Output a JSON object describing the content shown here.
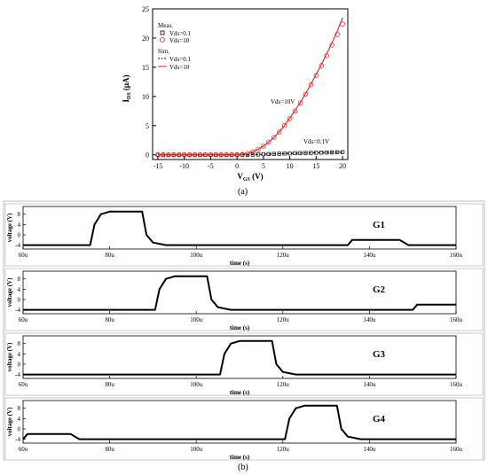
{
  "chart_data": [
    {
      "type": "scatter",
      "panel_label": "(a)",
      "xlabel": "V",
      "xlabel_sub": "GS",
      "xlabel_unit": " (V)",
      "ylabel": "I",
      "ylabel_sub": "DS",
      "ylabel_unit": " (μA)",
      "xlim": [
        -16,
        21
      ],
      "ylim": [
        -0.8,
        25
      ],
      "xticks": [
        -15,
        -10,
        -5,
        0,
        5,
        10,
        15,
        20
      ],
      "yticks": [
        0,
        5,
        10,
        15,
        20,
        25
      ],
      "legend": {
        "placement": "top-left",
        "group1": "Meas.",
        "group2": "Sim.",
        "items": [
          "Vds=0.1",
          "Vds=10",
          "Vds=0.1",
          "Vds=10"
        ]
      },
      "annotations": [
        "Vds=10V",
        "Vds=0.1V"
      ],
      "series": [
        {
          "name": "Vds=0.1",
          "group": "Meas.",
          "style": "square-marker",
          "color": "#000000",
          "x": [
            -15,
            -14,
            -13,
            -12,
            -11,
            -10,
            -9,
            -8,
            -7,
            -6,
            -5,
            -4,
            -3,
            -2,
            -1,
            0,
            1,
            2,
            3,
            4,
            5,
            6,
            7,
            8,
            9,
            10,
            11,
            12,
            13,
            14,
            15,
            16,
            17,
            18,
            19,
            20
          ],
          "y": [
            0,
            0,
            0,
            0,
            0,
            0,
            0,
            0,
            0,
            0,
            0,
            0,
            0,
            0,
            0,
            0,
            0.01,
            0.02,
            0.04,
            0.07,
            0.1,
            0.13,
            0.16,
            0.19,
            0.22,
            0.25,
            0.28,
            0.3,
            0.32,
            0.34,
            0.36,
            0.38,
            0.4,
            0.42,
            0.44,
            0.46
          ]
        },
        {
          "name": "Vds=10",
          "group": "Meas.",
          "style": "circle-marker",
          "color": "#e8231f",
          "x": [
            -15,
            -14,
            -13,
            -12,
            -11,
            -10,
            -9,
            -8,
            -7,
            -6,
            -5,
            -4,
            -3,
            -2,
            -1,
            0,
            1,
            2,
            3,
            4,
            5,
            6,
            7,
            8,
            9,
            10,
            11,
            12,
            13,
            14,
            15,
            16,
            17,
            18,
            19,
            20
          ],
          "y": [
            0,
            0,
            0,
            0,
            0,
            0,
            0,
            0,
            0,
            0,
            0,
            0,
            0,
            0,
            0,
            0.02,
            0.08,
            0.25,
            0.55,
            0.95,
            1.5,
            2.2,
            3.0,
            3.9,
            5.0,
            6.2,
            7.5,
            8.9,
            10.4,
            12.0,
            13.6,
            15.3,
            17.0,
            18.8,
            20.6,
            22.4
          ]
        },
        {
          "name": "Vds=0.1",
          "group": "Sim.",
          "style": "dashed-line",
          "color": "#000000",
          "x": [
            -15,
            -10,
            -5,
            0,
            2,
            4,
            6,
            8,
            10,
            12,
            14,
            16,
            18,
            20
          ],
          "y": [
            0,
            0,
            0,
            0,
            0.02,
            0.07,
            0.13,
            0.19,
            0.25,
            0.3,
            0.34,
            0.38,
            0.42,
            0.46
          ]
        },
        {
          "name": "Vds=10",
          "group": "Sim.",
          "style": "solid-line",
          "color": "#e8231f",
          "x": [
            -15,
            -10,
            -5,
            0,
            1,
            2,
            3,
            4,
            5,
            6,
            7,
            8,
            9,
            10,
            11,
            12,
            13,
            14,
            15,
            16,
            17,
            18,
            19,
            20
          ],
          "y": [
            0,
            0,
            0,
            0.02,
            0.08,
            0.25,
            0.55,
            0.95,
            1.5,
            2.2,
            3.0,
            3.95,
            5.05,
            6.3,
            7.6,
            9.0,
            10.5,
            12.1,
            13.8,
            15.5,
            17.3,
            19.2,
            21.2,
            23.5
          ]
        }
      ]
    },
    {
      "type": "line",
      "panel_label": "G1",
      "ylabel": "voltage (V)",
      "xlabel": "time (s)",
      "xlim": [
        60,
        160
      ],
      "ylim": [
        -5.5,
        11
      ],
      "xtick_labels": [
        "60u",
        "80u",
        "100u",
        "120u",
        "140u",
        "160u"
      ],
      "ytick_labels": [
        "8",
        "4",
        "0",
        "-4"
      ],
      "ytick_values": [
        8,
        4,
        0,
        -4
      ],
      "series": [
        {
          "x_us": [
            60,
            75.5,
            76.5,
            78,
            80,
            87.5,
            88.5,
            90,
            93,
            135,
            136,
            147,
            149,
            160
          ],
          "y": [
            -4,
            -4,
            4,
            8,
            9,
            9,
            0,
            -3,
            -4,
            -4,
            -2,
            -2,
            -4,
            -4
          ]
        }
      ]
    },
    {
      "type": "line",
      "panel_label": "G2",
      "ylabel": "voltage (V)",
      "xlabel": "time (s)",
      "xlim": [
        60,
        160
      ],
      "ylim": [
        -5.5,
        11
      ],
      "xtick_labels": [
        "60u",
        "80u",
        "100u",
        "120u",
        "140u",
        "160u"
      ],
      "ytick_labels": [
        "8",
        "4",
        "0",
        "-4"
      ],
      "ytick_values": [
        8,
        4,
        0,
        -4
      ],
      "series": [
        {
          "x_us": [
            60,
            90.5,
            91.5,
            93,
            95,
            102.5,
            103.5,
            105,
            108,
            150,
            151,
            160
          ],
          "y": [
            -4,
            -4,
            4,
            8,
            9,
            9,
            0,
            -3,
            -4,
            -4,
            -2,
            -2
          ]
        }
      ]
    },
    {
      "type": "line",
      "panel_label": "G3",
      "ylabel": "voltage (V)",
      "xlabel": "time (s)",
      "xlim": [
        60,
        160
      ],
      "ylim": [
        -5.5,
        11
      ],
      "xtick_labels": [
        "60u",
        "80u",
        "100u",
        "120u",
        "140u",
        "160u"
      ],
      "ytick_labels": [
        "8",
        "4",
        "0",
        "-4"
      ],
      "ytick_values": [
        8,
        4,
        0,
        -4
      ],
      "series": [
        {
          "x_us": [
            60,
            105.5,
            106.5,
            108,
            110,
            117.5,
            118.5,
            120,
            123,
            160
          ],
          "y": [
            -4,
            -4,
            4,
            8,
            9,
            9,
            0,
            -3,
            -4,
            -4
          ]
        }
      ]
    },
    {
      "type": "line",
      "panel_label": "G4",
      "ylabel": "voltage (V)",
      "xlabel": "time (s)",
      "xlim": [
        60,
        160
      ],
      "ylim": [
        -5.5,
        11
      ],
      "xtick_labels": [
        "60u",
        "80u",
        "100u",
        "120u",
        "140u",
        "160u"
      ],
      "ytick_labels": [
        "8",
        "4",
        "0",
        "-4"
      ],
      "ytick_values": [
        8,
        4,
        0,
        -4
      ],
      "series": [
        {
          "x_us": [
            60,
            61,
            71,
            73,
            120.5,
            121.5,
            123,
            125,
            132.5,
            133.5,
            135,
            138,
            160
          ],
          "y": [
            -4,
            -2,
            -2,
            -4,
            -4,
            4,
            8,
            9,
            9,
            0,
            -3,
            -4,
            -4
          ]
        }
      ]
    }
  ],
  "figure_label_b": "(b)"
}
